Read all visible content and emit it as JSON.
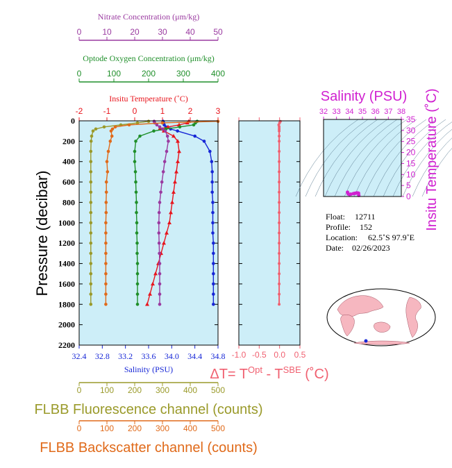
{
  "colors": {
    "nitrate": "#9a3aa0",
    "oxygen": "#1f8f2a",
    "temperature": "#e8141c",
    "salinity": "#1626d6",
    "fluorescence": "#9a9a2a",
    "backscatter": "#e06a1a",
    "delta": "#f06070",
    "ts_title": "#d020d0",
    "panel_bg": "#cdeef8"
  },
  "axes": {
    "nitrate": {
      "label": "Nitrate Concentration (μm/kg)",
      "ticks": [
        "0",
        "10",
        "20",
        "30",
        "40",
        "50"
      ]
    },
    "oxygen": {
      "label": "Optode Oxygen Concentration (μm/kg)",
      "ticks": [
        "0",
        "100",
        "200",
        "300",
        "400"
      ]
    },
    "temperature": {
      "label": "Insitu Temperature (˚C)",
      "ticks": [
        "-2",
        "-1",
        "0",
        "1",
        "2",
        "3"
      ]
    },
    "salinity": {
      "label": "Salinity (PSU)",
      "ticks": [
        "32.4",
        "32.8",
        "33.2",
        "33.6",
        "34.0",
        "34.4",
        "34.8"
      ]
    },
    "pressure": {
      "label": "Pressure (decibar)",
      "ticks": [
        "0",
        "200",
        "400",
        "600",
        "800",
        "1000",
        "1200",
        "1400",
        "1600",
        "1800",
        "2000",
        "2200"
      ]
    },
    "fluorescence": {
      "label": "FLBB Fluorescence channel (counts)",
      "ticks": [
        "0",
        "100",
        "200",
        "300",
        "400",
        "500"
      ]
    },
    "backscatter": {
      "label": "FLBB Backscatter channel (counts)",
      "ticks": [
        "0",
        "100",
        "200",
        "300",
        "400",
        "500"
      ]
    },
    "delta": {
      "label_prefix": "ΔT= T",
      "label_opt": "Opt",
      "label_mid": " - T",
      "label_sbe": "SBE",
      "label_suffix": " (˚C)",
      "ticks": [
        "-1.0",
        "-0.5",
        "0.0",
        "0.5"
      ]
    }
  },
  "ts_diagram": {
    "title": "Salinity (PSU)",
    "ylabel": "Insitu Temperature (˚C)",
    "x_ticks": [
      "32",
      "33",
      "34",
      "35",
      "36",
      "37",
      "38"
    ],
    "y_ticks": [
      "0",
      "5",
      "10",
      "15",
      "20",
      "25",
      "30",
      "35"
    ]
  },
  "info": {
    "float_label": "Float:",
    "float_value": "12711",
    "profile_label": "Profile:",
    "profile_value": "152",
    "location_label": "Location:",
    "location_value": "62.5˚S  97.9˚E",
    "date_label": "Date:",
    "date_value": "02/26/2023"
  },
  "chart_data": {
    "type": "line",
    "ylabel": "Pressure (decibar)",
    "ylim": [
      2200,
      0
    ],
    "pressure": [
      5,
      20,
      40,
      60,
      80,
      100,
      150,
      200,
      300,
      400,
      500,
      600,
      700,
      800,
      900,
      1000,
      1100,
      1200,
      1300,
      1400,
      1500,
      1600,
      1700,
      1800
    ],
    "series": [
      {
        "name": "Salinity (PSU)",
        "key": "salinity",
        "xlim": [
          32.4,
          34.8
        ],
        "values": [
          33.85,
          33.86,
          33.87,
          33.9,
          33.98,
          34.1,
          34.4,
          34.56,
          34.66,
          34.69,
          34.7,
          34.7,
          34.7,
          34.71,
          34.71,
          34.71,
          34.71,
          34.72,
          34.72,
          34.72,
          34.72,
          34.72,
          34.72,
          34.72
        ]
      },
      {
        "name": "Insitu Temperature (˚C)",
        "key": "temperature",
        "xlim": [
          -2,
          3
        ],
        "values": [
          1.95,
          1.9,
          1.6,
          1.2,
          0.9,
          1.05,
          1.4,
          1.55,
          1.6,
          1.55,
          1.5,
          1.45,
          1.4,
          1.35,
          1.3,
          1.25,
          1.15,
          1.05,
          0.95,
          0.85,
          0.75,
          0.65,
          0.55,
          0.45
        ]
      },
      {
        "name": "Optode Oxygen Concentration (μm/kg)",
        "key": "oxygen",
        "xlim": [
          0,
          400
        ],
        "values": [
          340,
          335,
          330,
          290,
          250,
          215,
          175,
          163,
          160,
          160,
          162,
          163,
          164,
          165,
          165,
          166,
          166,
          167,
          167,
          168,
          168,
          168,
          168,
          168
        ]
      },
      {
        "name": "Nitrate Concentration (μm/kg)",
        "key": "nitrate",
        "xlim": [
          0,
          50
        ],
        "values": [
          27,
          27.2,
          28,
          29,
          30,
          31,
          31.8,
          32.1,
          31.5,
          30.8,
          30.3,
          29.8,
          29.4,
          29.0,
          28.8,
          28.7,
          28.7,
          28.8,
          28.9,
          29.0,
          29.0,
          29.0,
          29.0,
          29.0
        ]
      },
      {
        "name": "FLBB Fluorescence channel (counts)",
        "key": "fluorescence",
        "xlim": [
          0,
          500
        ],
        "values": [
          250,
          210,
          150,
          90,
          60,
          50,
          45,
          43,
          42,
          42,
          42,
          42,
          42,
          42,
          42,
          42,
          42,
          42,
          42,
          42,
          42,
          42,
          42,
          42
        ]
      },
      {
        "name": "FLBB Backscatter channel (counts)",
        "key": "backscatter",
        "xlim": [
          0,
          500
        ],
        "values": [
          500,
          300,
          180,
          130,
          120,
          115,
          118,
          112,
          105,
          100,
          102,
          98,
          98,
          97,
          97,
          96,
          96,
          96,
          96,
          96,
          96,
          96,
          96,
          96
        ]
      }
    ],
    "delta_t": {
      "name": "ΔT",
      "xlim": [
        -1.0,
        0.5
      ],
      "values": [
        0.02,
        0.0,
        -0.02,
        -0.01,
        -0.01,
        -0.01,
        -0.01,
        -0.01,
        -0.01,
        -0.01,
        -0.01,
        -0.01,
        -0.01,
        -0.01,
        -0.01,
        -0.01,
        -0.01,
        -0.01,
        -0.01,
        -0.01,
        -0.01,
        -0.01,
        -0.01,
        -0.01
      ]
    },
    "ts_points": {
      "xlim": [
        32,
        38
      ],
      "ylim": [
        0,
        35
      ],
      "salinity": [
        33.85,
        33.9,
        34.0,
        34.1,
        34.3,
        34.4,
        34.5,
        34.6,
        34.7,
        34.72
      ],
      "temperature": [
        1.95,
        1.2,
        0.9,
        1.05,
        1.3,
        1.4,
        1.55,
        1.6,
        1.5,
        0.5
      ]
    }
  }
}
